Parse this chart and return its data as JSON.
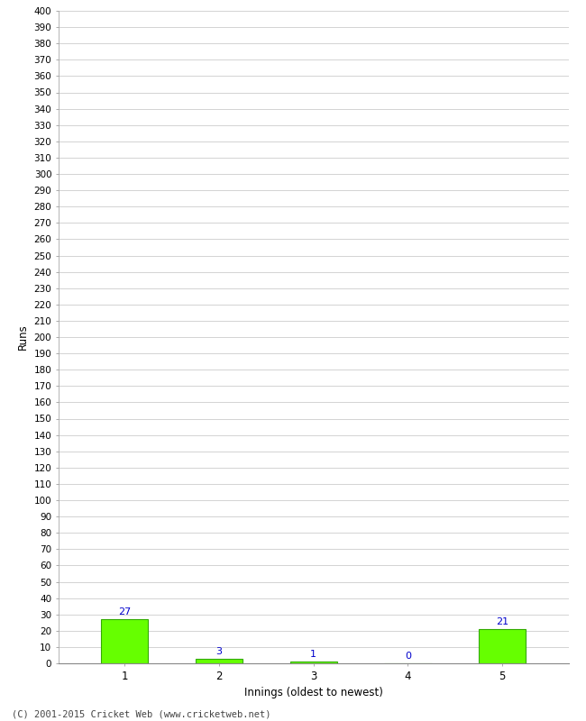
{
  "xlabel": "Innings (oldest to newest)",
  "ylabel": "Runs",
  "categories": [
    1,
    2,
    3,
    4,
    5
  ],
  "values": [
    27,
    3,
    1,
    0,
    21
  ],
  "bar_color": "#66ff00",
  "bar_edge_color": "#33aa00",
  "label_color": "#0000cc",
  "ylim": [
    0,
    400
  ],
  "ytick_step": 10,
  "background_color": "#ffffff",
  "grid_color": "#cccccc",
  "footer": "(C) 2001-2015 Cricket Web (www.cricketweb.net)"
}
